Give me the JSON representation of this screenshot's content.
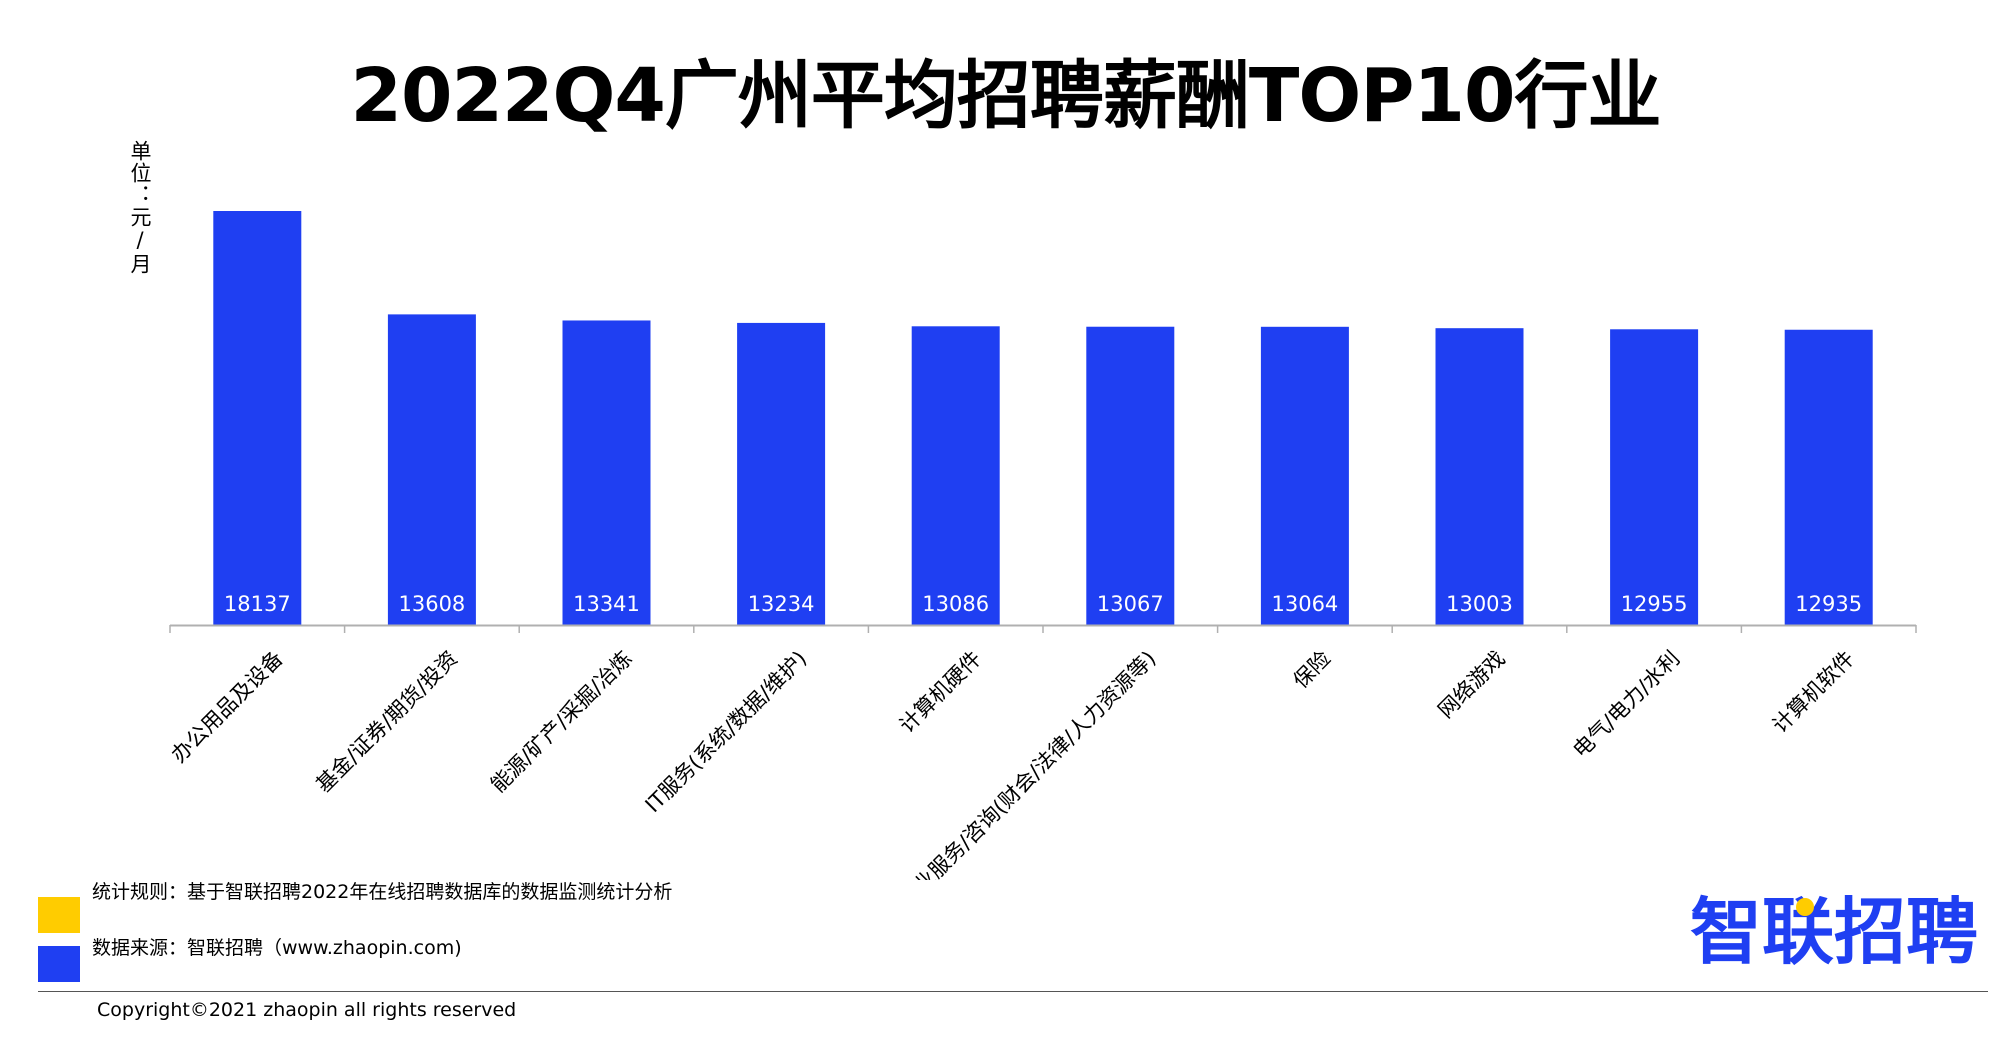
{
  "title": "2022Q4广州平均招聘薪酬TOP10行业",
  "unit_label": "单位：元/月",
  "colors": {
    "bar": "#1f3ff2",
    "bar_value_text": "#ffffff",
    "axis": "#b0b0b0",
    "legend_rule": "#ffcc00",
    "legend_source": "#1f3ff2",
    "brand": "#1f3ff2",
    "brand_dot": "#ffcc00"
  },
  "legend": {
    "rule_text": "统计规则：基于智联招聘2022年在线招聘数据库的数据监测统计分析",
    "source_text": "数据来源：智联招聘（www.zhaopin.com)"
  },
  "copyright": "Copyright©2021 zhaopin all rights reserved",
  "brand_logo": {
    "text": "智联招聘",
    "icon": "brand-logo"
  },
  "chart_data": {
    "type": "bar",
    "title": "2022Q4广州平均招聘薪酬TOP10行业",
    "ylabel": "单位：元/月",
    "xlabel": "",
    "categories": [
      "办公用品及设备",
      "基金/证券/期货/投资",
      "能源/矿产/采掘/冶炼",
      "IT服务(系统/数据/维护)",
      "计算机硬件",
      "专业服务/咨询(财会/法律/人力资源等)",
      "保险",
      "网络游戏",
      "电气/电力/水利",
      "计算机软件"
    ],
    "values": [
      18137,
      13608,
      13341,
      13234,
      13086,
      13067,
      13064,
      13003,
      12955,
      12935
    ],
    "ylim": [
      0,
      18137
    ],
    "grid": false,
    "legend": "none",
    "data_labels": "inside-bottom"
  }
}
